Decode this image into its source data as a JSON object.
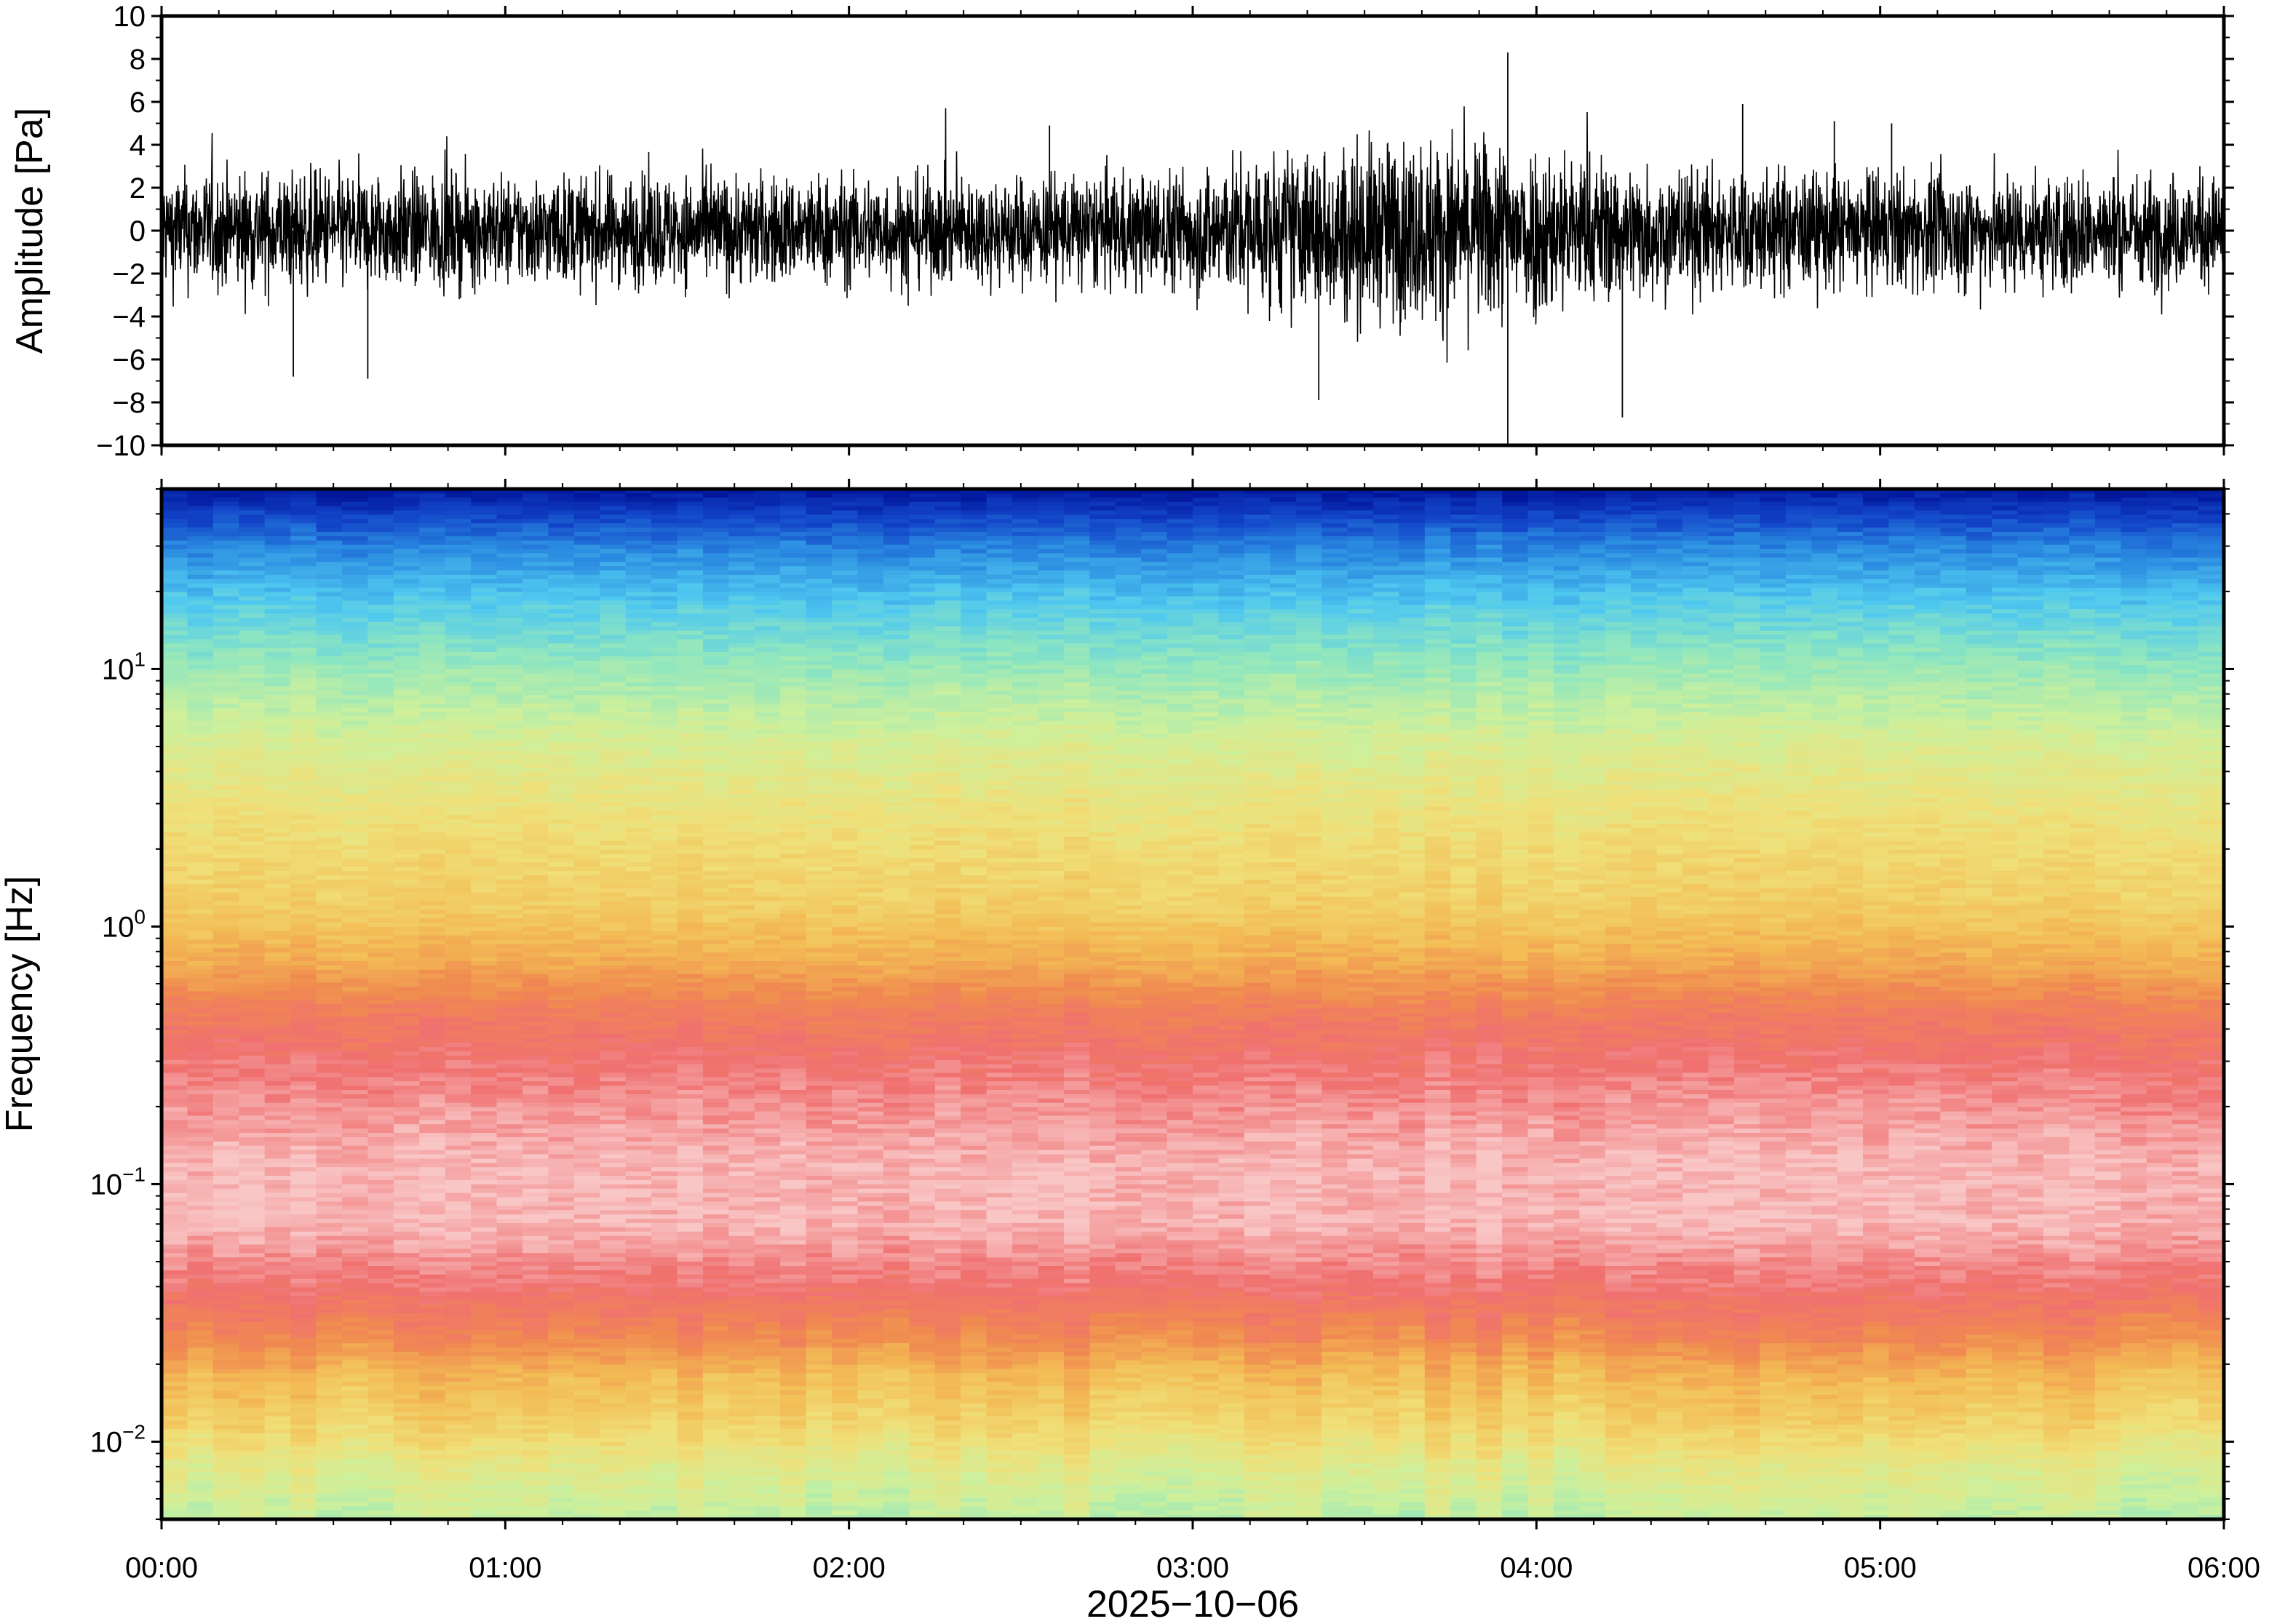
{
  "chart_data": [
    {
      "type": "line",
      "title": "",
      "xlabel": "",
      "ylabel": "Amplitude [Pa]",
      "xlim": [
        "00:00",
        "06:00"
      ],
      "ylim": [
        -10,
        10
      ],
      "yticks": [
        -10,
        -8,
        -6,
        -4,
        -2,
        0,
        2,
        4,
        6,
        8,
        10
      ],
      "ytick_labels": [
        "−10",
        "−8",
        "−6",
        "−4",
        "−2",
        "0",
        "2",
        "4",
        "6",
        "8",
        "10"
      ],
      "envelope": {
        "time": [
          "00:00",
          "00:30",
          "01:00",
          "01:30",
          "02:00",
          "02:30",
          "02:55",
          "03:15",
          "03:30",
          "03:45",
          "04:00",
          "04:15",
          "04:30",
          "05:00",
          "05:30",
          "06:00"
        ],
        "typical_peak": [
          3.0,
          3.0,
          2.8,
          2.8,
          2.8,
          2.8,
          3.0,
          4.0,
          4.5,
          4.8,
          4.5,
          3.5,
          3.2,
          3.0,
          3.0,
          2.8
        ]
      },
      "notable_spikes": [
        {
          "time": "00:23",
          "value": -6.8
        },
        {
          "time": "00:36",
          "value": -6.9
        },
        {
          "time": "02:35",
          "value": 4.9
        },
        {
          "time": "03:22",
          "value": -7.9
        },
        {
          "time": "03:55",
          "value": 8.3
        },
        {
          "time": "03:55",
          "value": -10.0
        },
        {
          "time": "04:15",
          "value": -8.7
        },
        {
          "time": "04:36",
          "value": 5.9
        },
        {
          "time": "04:52",
          "value": 5.1
        },
        {
          "time": "05:02",
          "value": 5.0
        }
      ],
      "grid": false
    },
    {
      "type": "heatmap",
      "title": "",
      "xlabel": "2025−10−06",
      "ylabel": "Frequency [Hz]",
      "xlim": [
        "00:00",
        "06:00"
      ],
      "xticks": [
        "00:00",
        "01:00",
        "02:00",
        "03:00",
        "04:00",
        "05:00",
        "06:00"
      ],
      "ylim": [
        0.005,
        50
      ],
      "yscale": "log",
      "ytick_labels": [
        {
          "base": "10",
          "exp": "−2"
        },
        {
          "base": "10",
          "exp": "−1"
        },
        {
          "base": "10",
          "exp": "0"
        },
        {
          "base": "10",
          "exp": "1"
        }
      ],
      "yticks": [
        0.01,
        0.1,
        1,
        10
      ],
      "colormap": [
        "#f9c6c6",
        "#f07070",
        "#f08a50",
        "#f3bc55",
        "#f0e079",
        "#cdf09c",
        "#8ee6c0",
        "#4fc8f0",
        "#2a8ae0",
        "#1244c8",
        "#02169a"
      ],
      "time_columns": 80,
      "band_profile": {
        "frequency_hz": [
          0.005,
          0.008,
          0.012,
          0.018,
          0.025,
          0.04,
          0.07,
          0.12,
          0.2,
          0.3,
          0.45,
          0.7,
          1.2,
          2.5,
          5,
          10,
          18,
          30,
          40,
          50
        ],
        "level_index": [
          5.2,
          4.5,
          3.6,
          3.0,
          2.0,
          1.0,
          0.2,
          0.2,
          0.6,
          1.0,
          1.5,
          2.6,
          3.5,
          4.0,
          4.7,
          5.8,
          6.9,
          8.1,
          9.1,
          10.0
        ]
      },
      "grid": false
    }
  ]
}
